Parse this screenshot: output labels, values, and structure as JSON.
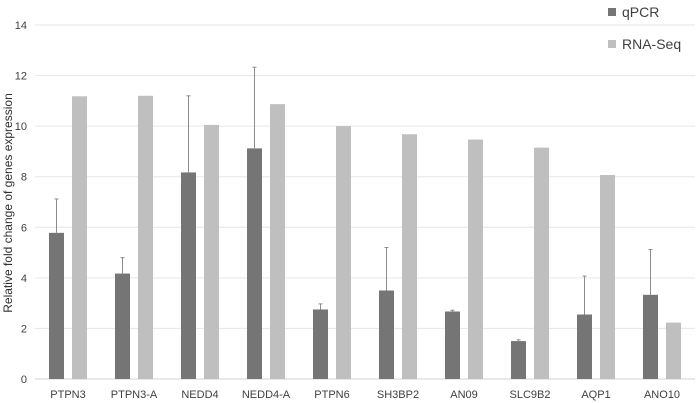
{
  "chart_data": {
    "type": "bar",
    "title": "",
    "xlabel": "",
    "ylabel": "Relative  fold change of genes expression",
    "ylim": [
      0,
      14
    ],
    "yticks": [
      0,
      2,
      4,
      6,
      8,
      10,
      12,
      14
    ],
    "grid": true,
    "legend_position": "top-right",
    "categories": [
      "PTPN3",
      "PTPN3-A",
      "NEDD4",
      "NEDD4-A",
      "PTPN6",
      "SH3BP2",
      "AN09",
      "SLC9B2",
      "AQP1",
      "ANO10"
    ],
    "series": [
      {
        "name": "qPCR",
        "color": "#757575",
        "values": [
          5.78,
          4.17,
          8.17,
          9.12,
          2.75,
          3.5,
          2.67,
          1.5,
          2.55,
          3.33
        ],
        "error_upper": [
          7.12,
          4.8,
          11.2,
          12.33,
          2.97,
          5.2,
          2.72,
          1.55,
          4.07,
          5.12
        ]
      },
      {
        "name": "RNA-Seq",
        "color": "#bfbfbf",
        "values": [
          11.18,
          11.2,
          10.05,
          10.87,
          10.0,
          9.68,
          9.47,
          9.15,
          8.07,
          2.23
        ]
      }
    ]
  }
}
